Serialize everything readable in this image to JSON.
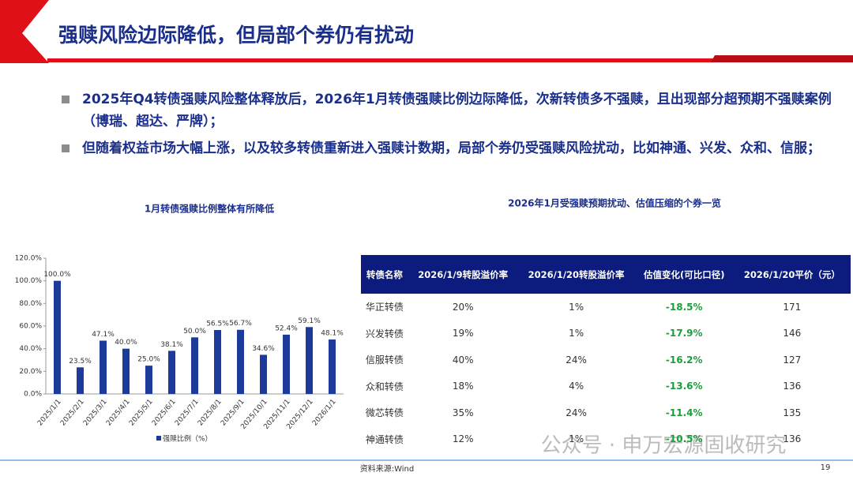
{
  "header": {
    "title": "强赎风险边际降低，但局部个券仍有扰动"
  },
  "bullets": [
    "2025年Q4转债强赎风险整体释放后，2026年1月转债强赎比例边际降低，次新转债多不强赎，且出现部分超预期不强赎案例（博瑞、超达、严牌）；",
    "但随着权益市场大幅上涨，以及较多转债重新进入强赎计数期，局部个券仍受强赎风险扰动，比如神通、兴发、众和、信服；"
  ],
  "chart_data": {
    "type": "bar",
    "title": "1月转债强赎比例整体有所降低",
    "categories": [
      "2025/1/1",
      "2025/2/1",
      "2025/3/1",
      "2025/4/1",
      "2025/5/1",
      "2025/6/1",
      "2025/7/1",
      "2025/8/1",
      "2025/9/1",
      "2025/10/1",
      "2025/11/1",
      "2025/12/1",
      "2026/1/1"
    ],
    "series": [
      {
        "name": "强赎比例（%）",
        "color": "#1b3a9a",
        "values": [
          100.0,
          23.5,
          47.1,
          40.0,
          25.0,
          38.1,
          50.0,
          56.5,
          56.7,
          34.6,
          52.4,
          59.1,
          48.1
        ],
        "value_labels": [
          "100.0%",
          "23.5%",
          "47.1%",
          "40.0%",
          "25.0%",
          "38.1%",
          "50.0%",
          "56.5%",
          "56.7%",
          "34.6%",
          "52.4%",
          "59.1%",
          "48.1%"
        ]
      }
    ],
    "ylim": [
      0,
      120
    ],
    "yticks": [
      {
        "value": 0,
        "label": "0.0%"
      },
      {
        "value": 20,
        "label": "20.0%"
      },
      {
        "value": 40,
        "label": "40.0%"
      },
      {
        "value": 60,
        "label": "60.0%"
      },
      {
        "value": 80,
        "label": "80.0%"
      },
      {
        "value": 100,
        "label": "100.0%"
      },
      {
        "value": 120,
        "label": "120.0%"
      }
    ],
    "legend": "bottom"
  },
  "table": {
    "title": "2026年1月受强赎预期扰动、估值压缩的个券一览",
    "columns": [
      "转债名称",
      "2026/1/9转股溢价率",
      "2026/1/20转股溢价率",
      "估值变化(可比口径)",
      "2026/1/20平价（元）"
    ],
    "rows": [
      [
        "华正转债",
        "20%",
        "1%",
        "-18.5%",
        "171"
      ],
      [
        "兴发转债",
        "19%",
        "1%",
        "-17.9%",
        "146"
      ],
      [
        "信服转债",
        "40%",
        "24%",
        "-16.2%",
        "127"
      ],
      [
        "众和转债",
        "18%",
        "4%",
        "-13.6%",
        "136"
      ],
      [
        "微芯转债",
        "35%",
        "24%",
        "-11.4%",
        "135"
      ],
      [
        "神通转债",
        "12%",
        "1%",
        "-10.5%",
        "136"
      ]
    ]
  },
  "watermark": "公众号 · 申万宏源固收研究",
  "footer": {
    "source": "资料来源:Wind",
    "page": "19"
  }
}
